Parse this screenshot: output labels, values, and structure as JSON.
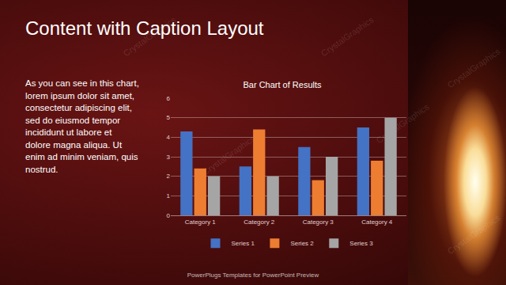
{
  "slide": {
    "title": "Content with Caption Layout",
    "caption": [
      "As you can see in this chart,",
      "lorem ipsum dolor sit amet,",
      "consectetur adipiscing elit,",
      "sed do eiusmod tempor",
      "incididunt ut labore et",
      "dolore magna aliqua. Ut",
      "enim ad minim veniam, quis",
      "nostrud."
    ],
    "footer": "PowerPlugs Templates for PowerPoint Preview",
    "watermark": "CrystalGraphics"
  },
  "chart_data": {
    "type": "bar",
    "title": "Bar Chart of Results",
    "categories": [
      "Category 1",
      "Category 2",
      "Category 3",
      "Category 4"
    ],
    "series": [
      {
        "name": "Series 1",
        "color": "#4472c4",
        "values": [
          4.3,
          2.5,
          3.5,
          4.5
        ]
      },
      {
        "name": "Series 2",
        "color": "#ed7d31",
        "values": [
          2.4,
          4.4,
          1.8,
          2.8
        ]
      },
      {
        "name": "Series 3",
        "color": "#a5a5a5",
        "values": [
          2,
          2,
          3,
          5
        ]
      }
    ],
    "ylim": [
      0,
      6
    ],
    "yticks": [
      0,
      1,
      2,
      3,
      4,
      5,
      6
    ],
    "grid": true,
    "legend": "bottom"
  }
}
